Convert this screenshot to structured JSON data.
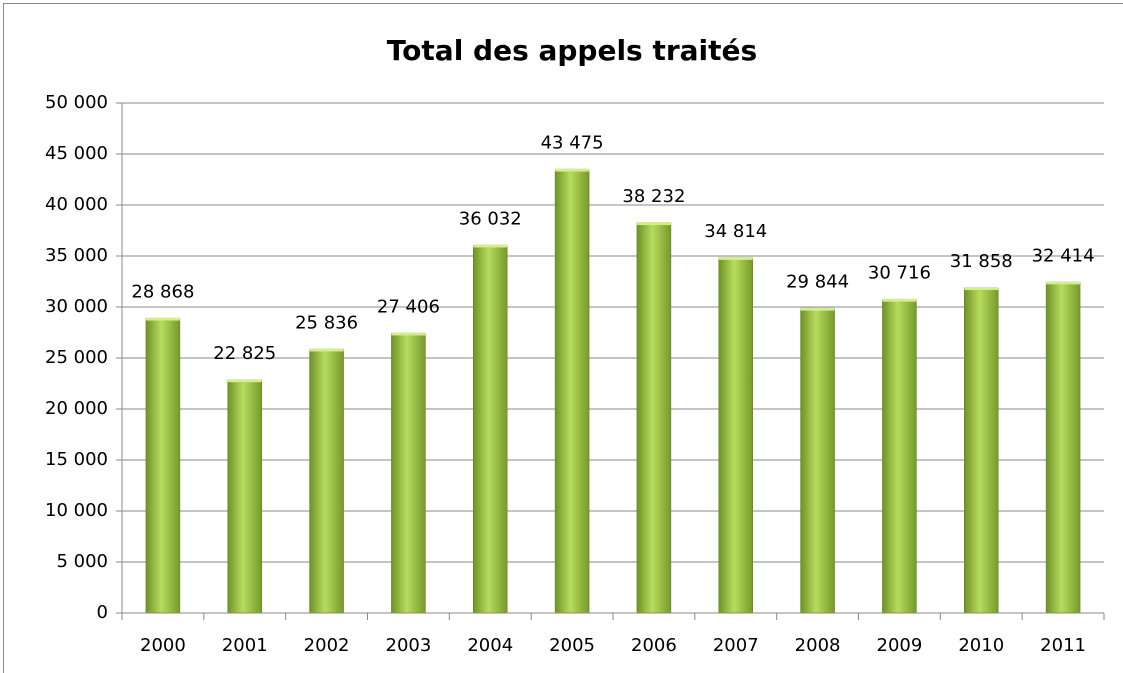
{
  "chart_data": {
    "type": "bar",
    "title": "Total des appels traités",
    "categories": [
      "2000",
      "2001",
      "2002",
      "2003",
      "2004",
      "2005",
      "2006",
      "2007",
      "2008",
      "2009",
      "2010",
      "2011"
    ],
    "values": [
      28868,
      22825,
      25836,
      27406,
      36032,
      43475,
      38232,
      34814,
      29844,
      30716,
      31858,
      32414
    ],
    "value_labels": [
      "28 868",
      "22 825",
      "25 836",
      "27 406",
      "36 032",
      "43 475",
      "38 232",
      "34 814",
      "29 844",
      "30 716",
      "31 858",
      "32 414"
    ],
    "color": "#9bc23c",
    "ylim": [
      0,
      50000
    ],
    "yticks": [
      0,
      {
        "value": 5000,
        "label": "5 000"
      },
      {
        "value": 10000,
        "label": "10 000"
      },
      {
        "value": 15000,
        "label": "15 000"
      },
      {
        "value": 20000,
        "label": "20 000"
      },
      {
        "value": 25000,
        "label": "25 000"
      },
      {
        "value": 30000,
        "label": "30 000"
      },
      {
        "value": 35000,
        "label": "35 000"
      },
      {
        "value": 40000,
        "label": "40 000"
      },
      {
        "value": 45000,
        "label": "45 000"
      },
      {
        "value": 50000,
        "label": "50 000"
      }
    ],
    "grid": true
  }
}
